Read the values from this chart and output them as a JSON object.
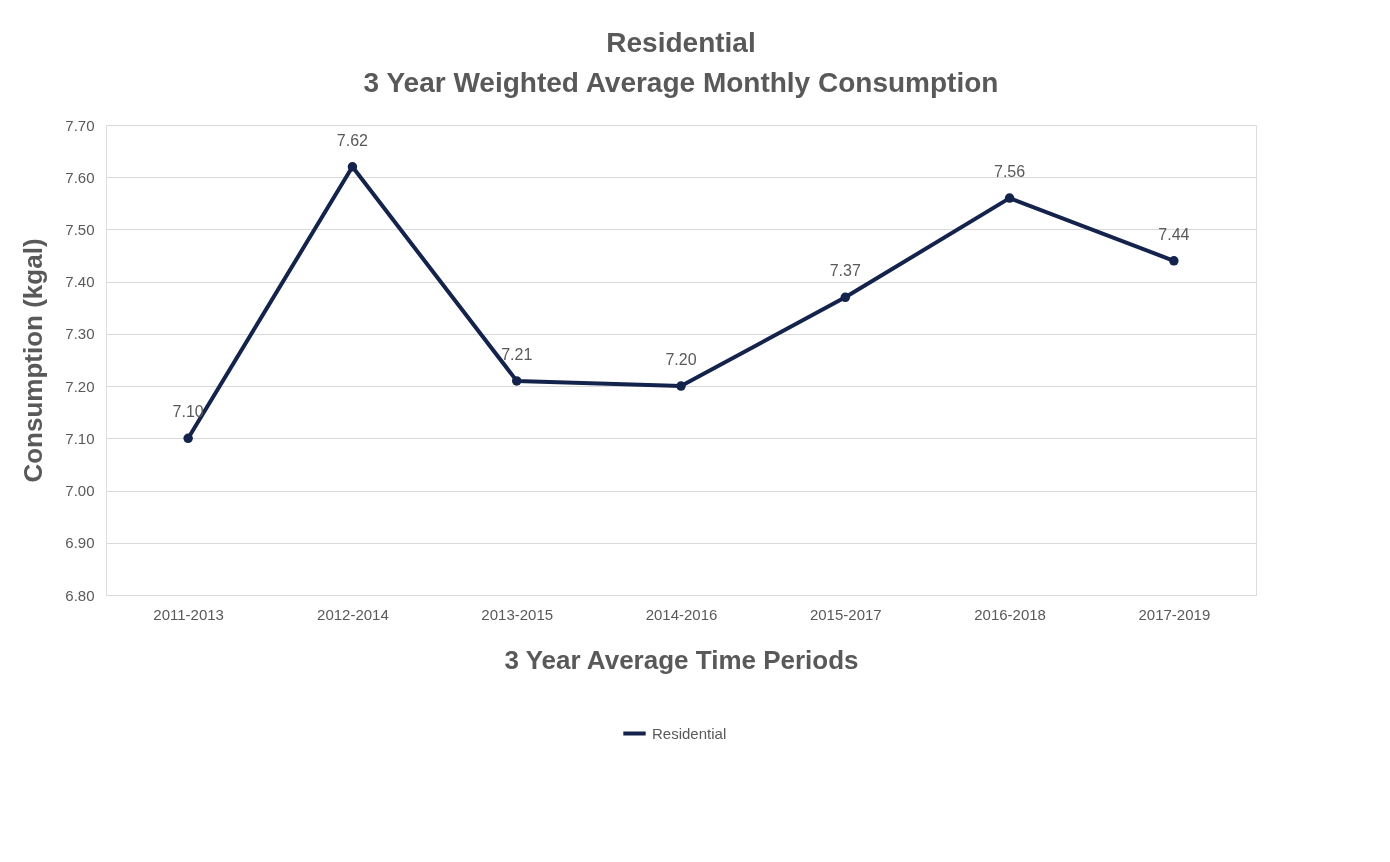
{
  "chart_data": {
    "type": "line",
    "title": "Residential",
    "subtitle": "3 Year Weighted Average Monthly Consumption",
    "xlabel": "3 Year Average Time Periods",
    "ylabel": "Consumption (kgal)",
    "categories": [
      "2011-2013",
      "2012-2014",
      "2013-2015",
      "2014-2016",
      "2015-2017",
      "2016-2018",
      "2017-2019"
    ],
    "series": [
      {
        "name": "Residential",
        "color": "#14234b",
        "values": [
          7.1,
          7.62,
          7.21,
          7.2,
          7.37,
          7.56,
          7.44
        ],
        "value_labels": [
          "7.10",
          "7.62",
          "7.21",
          "7.20",
          "7.37",
          "7.56",
          "7.44"
        ]
      }
    ],
    "ylim": [
      6.8,
      7.7
    ],
    "yticks": [
      {
        "value": 6.8,
        "label": "6.80"
      },
      {
        "value": 6.9,
        "label": "6.90"
      },
      {
        "value": 7.0,
        "label": "7.00"
      },
      {
        "value": 7.1,
        "label": "7.10"
      },
      {
        "value": 7.2,
        "label": "7.20"
      },
      {
        "value": 7.3,
        "label": "7.30"
      },
      {
        "value": 7.4,
        "label": "7.40"
      },
      {
        "value": 7.5,
        "label": "7.50"
      },
      {
        "value": 7.6,
        "label": "7.60"
      },
      {
        "value": 7.7,
        "label": "7.70"
      }
    ],
    "grid": "y",
    "legend": "bottom",
    "marker": "circle",
    "line_style": "solid"
  }
}
